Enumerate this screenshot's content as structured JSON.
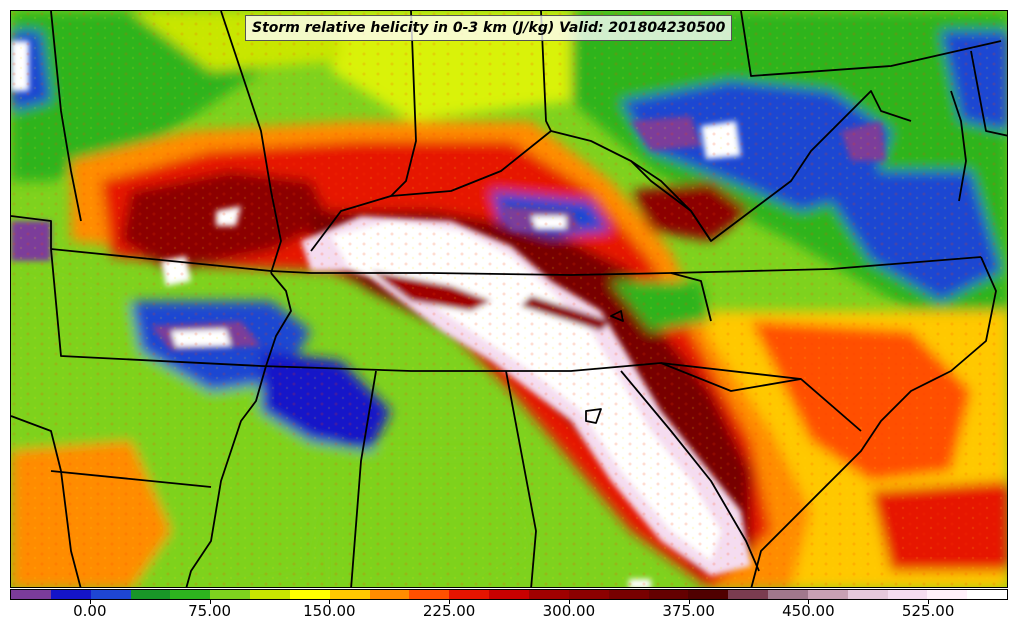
{
  "title": "Storm relative helicity in 0-3 km (J/kg) Valid: 201804230500",
  "colorbar": {
    "tick_labels": [
      "0.00",
      "75.00",
      "150.00",
      "225.00",
      "300.00",
      "375.00",
      "450.00",
      "525.00"
    ],
    "tick_values": [
      0,
      75,
      150,
      225,
      300,
      375,
      450,
      525
    ],
    "min": -50,
    "max": 575,
    "step": 25,
    "colors": [
      "#7b3c9a",
      "#1414c8",
      "#1e46d2",
      "#199628",
      "#2db41e",
      "#7ed21e",
      "#c8e600",
      "#ffff00",
      "#ffc800",
      "#ff8c00",
      "#ff5000",
      "#e61400",
      "#c80000",
      "#a00000",
      "#8c0000",
      "#780000",
      "#640000",
      "#500000",
      "#7a3c50",
      "#a0788c",
      "#c8a0b4",
      "#e6c8dc",
      "#f5dcf0",
      "#fff0fa",
      "#ffffff"
    ]
  }
}
